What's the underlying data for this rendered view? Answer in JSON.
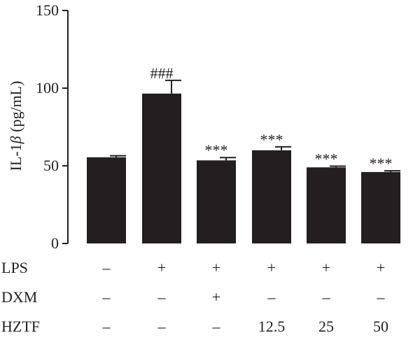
{
  "chart_data": {
    "type": "bar",
    "ylabel_prefix": "IL-1",
    "ylabel_symbol": "β",
    "ylabel_unit": " (pg/mL)",
    "ylim": [
      0,
      150
    ],
    "yticks": [
      0,
      50,
      100,
      150
    ],
    "ytick_labels": [
      "0",
      "50",
      "100",
      "150"
    ],
    "values": [
      55.5,
      96.5,
      53.5,
      60.0,
      49.0,
      46.0
    ],
    "errors": [
      1.0,
      8.5,
      1.8,
      2.2,
      0.8,
      0.8
    ],
    "significance": [
      "",
      "###",
      "***",
      "***",
      "***",
      "***"
    ],
    "bar_color": "#231f20",
    "grid": false,
    "conditions": [
      {
        "name": "LPS",
        "values": [
          "–",
          "+",
          "+",
          "+",
          "+",
          "+"
        ]
      },
      {
        "name": "DXM",
        "values": [
          "–",
          "–",
          "+",
          "–",
          "–",
          "–"
        ]
      },
      {
        "name": "HZTF",
        "values": [
          "–",
          "–",
          "–",
          "12.5",
          "25",
          "50"
        ]
      }
    ]
  }
}
